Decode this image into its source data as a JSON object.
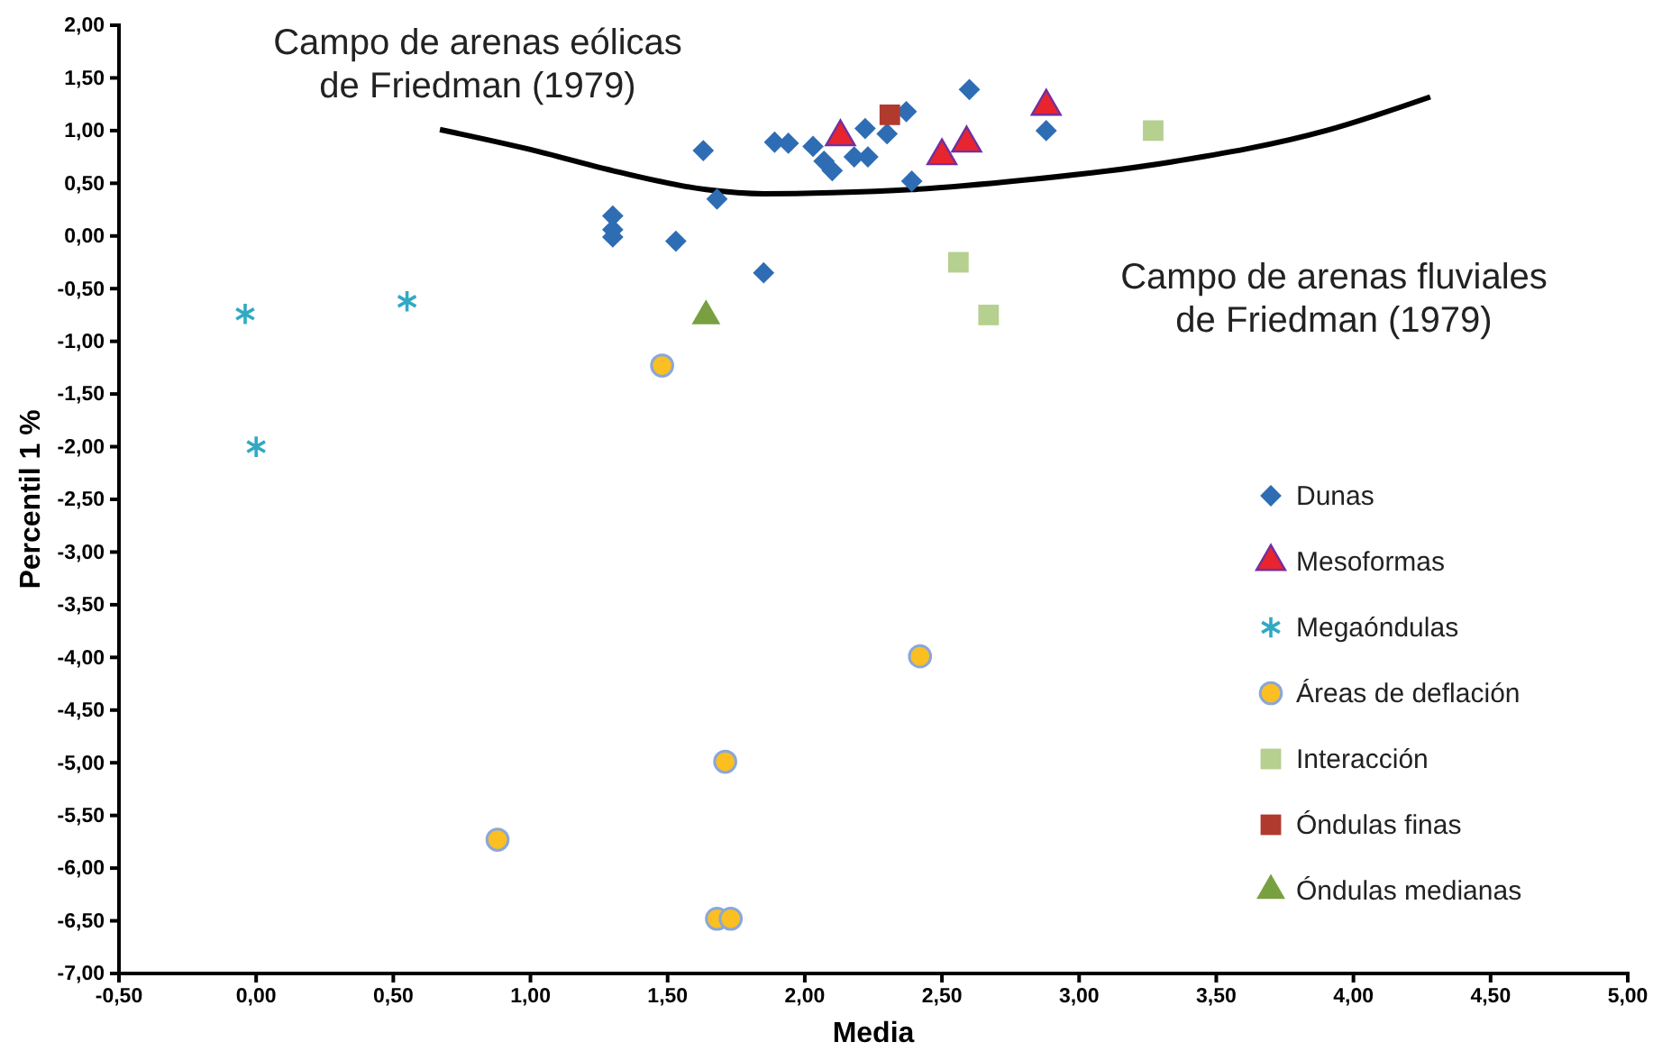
{
  "chart_data": {
    "type": "scatter",
    "xlabel": "Media",
    "ylabel": "Percentil 1 %",
    "annotations": [
      "Campo de arenas eólicas\nde Friedman (1979)",
      "Campo de arenas fluviales\nde Friedman (1979)"
    ],
    "xlim": [
      -0.5,
      5
    ],
    "ylim": [
      -7,
      2
    ],
    "xticks": [
      {
        "value": -0.5,
        "label": "-0,50"
      },
      {
        "value": 0,
        "label": "0,00"
      },
      {
        "value": 0.5,
        "label": "0,50"
      },
      {
        "value": 1,
        "label": "1,00"
      },
      {
        "value": 1.5,
        "label": "1,50"
      },
      {
        "value": 2,
        "label": "2,00"
      },
      {
        "value": 2.5,
        "label": "2,50"
      },
      {
        "value": 3,
        "label": "3,00"
      },
      {
        "value": 3.5,
        "label": "3,50"
      },
      {
        "value": 4,
        "label": "4,00"
      },
      {
        "value": 4.5,
        "label": "4,50"
      },
      {
        "value": 5,
        "label": "5,00"
      }
    ],
    "yticks": [
      {
        "value": 2,
        "label": "2,00"
      },
      {
        "value": 1.5,
        "label": "1,50"
      },
      {
        "value": 1,
        "label": "1,00"
      },
      {
        "value": 0.5,
        "label": "0,50"
      },
      {
        "value": 0,
        "label": "0,00"
      },
      {
        "value": -0.5,
        "label": "-0,50"
      },
      {
        "value": -1,
        "label": "-1,00"
      },
      {
        "value": -1.5,
        "label": "-1,50"
      },
      {
        "value": -2,
        "label": "-2,00"
      },
      {
        "value": -2.5,
        "label": "-2,50"
      },
      {
        "value": -3,
        "label": "-3,00"
      },
      {
        "value": -3.5,
        "label": "-3,50"
      },
      {
        "value": -4,
        "label": "-4,00"
      },
      {
        "value": -4.5,
        "label": "-4,50"
      },
      {
        "value": -5,
        "label": "-5,00"
      },
      {
        "value": -5.5,
        "label": "-5,50"
      },
      {
        "value": -6,
        "label": "-6,00"
      },
      {
        "value": -6.5,
        "label": "-6,50"
      },
      {
        "value": -7,
        "label": "-7,00"
      }
    ],
    "grid": false,
    "legend": "right",
    "series": [
      {
        "type": "line",
        "color": "#000000",
        "marker": "none",
        "x": [
          0.67,
          1.0,
          1.3,
          1.64,
          1.85,
          2.1,
          2.39,
          2.8,
          3.33,
          3.9,
          4.28
        ],
        "values": [
          1.01,
          0.82,
          0.62,
          0.44,
          0.4,
          0.41,
          0.44,
          0.53,
          0.7,
          1.0,
          1.32
        ]
      },
      {
        "name": "Dunas",
        "color": "#2e6db4",
        "marker": "diamond",
        "x": [
          2.6,
          2.37,
          2.3,
          2.22,
          1.89,
          1.94,
          2.03,
          2.07,
          2.1,
          2.18,
          2.23,
          2.88,
          2.39,
          1.63,
          1.68,
          1.3,
          1.3,
          1.3,
          1.53,
          1.85
        ],
        "values": [
          1.39,
          1.18,
          0.97,
          1.02,
          0.89,
          0.88,
          0.85,
          0.71,
          0.62,
          0.75,
          0.75,
          1.0,
          0.52,
          0.81,
          0.35,
          0.19,
          0.06,
          -0.01,
          -0.05,
          -0.35
        ]
      },
      {
        "name": "Mesoformas",
        "color": "#e8242f",
        "marker": "triangle",
        "x": [
          2.13,
          2.5,
          2.59,
          2.88
        ],
        "values": [
          0.94,
          0.76,
          0.88,
          1.23
        ]
      },
      {
        "name": "Megaóndulas",
        "color": "#31a9c3",
        "marker": "cross",
        "x": [
          -0.04,
          0.55,
          0.0
        ],
        "values": [
          -0.74,
          -0.62,
          -2.0
        ]
      },
      {
        "name": "Áreas de deflación",
        "color": "#fbbf21",
        "marker": "circle",
        "x": [
          1.48,
          2.42,
          1.71,
          0.88,
          1.68,
          1.73
        ],
        "values": [
          -1.23,
          -3.99,
          -4.99,
          -5.73,
          -6.48,
          -6.48
        ]
      },
      {
        "name": "Interacción",
        "color": "#b5d08f",
        "marker": "square",
        "x": [
          3.27,
          2.56,
          2.67
        ],
        "values": [
          1.0,
          -0.25,
          -0.75
        ]
      },
      {
        "name": "Óndulas finas",
        "color": "#b03a2e",
        "marker": "square",
        "x": [
          2.31
        ],
        "values": [
          1.15
        ]
      },
      {
        "name": "Óndulas medianas",
        "color": "#78a040",
        "marker": "triangle",
        "x": [
          1.64
        ],
        "values": [
          -0.76
        ]
      }
    ]
  }
}
